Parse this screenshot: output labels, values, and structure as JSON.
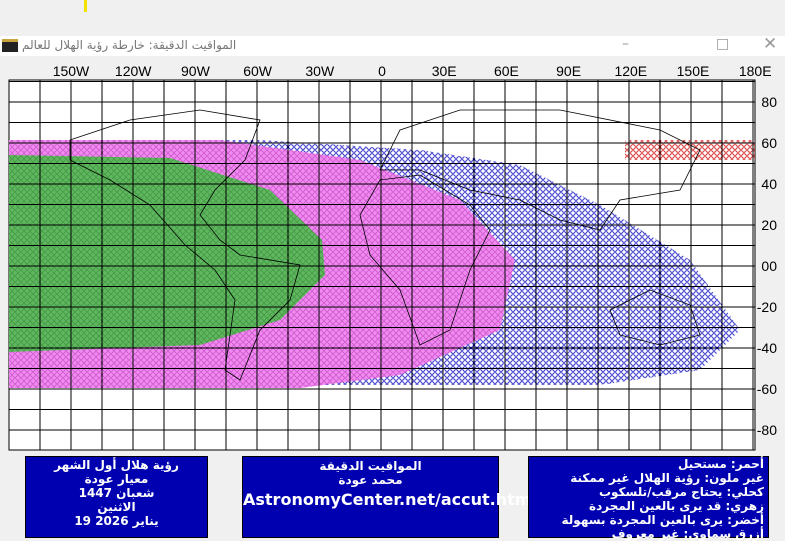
{
  "window": {
    "title": "المواقيت الدقيقة: خارطة رؤية الهلال للعالم"
  },
  "map": {
    "lon_labels": [
      "150W",
      "120W",
      "90W",
      "60W",
      "30W",
      "0",
      "30E",
      "60E",
      "90E",
      "120E",
      "150E",
      "180E"
    ],
    "lat_labels": [
      "80",
      "60",
      "40",
      "20",
      "00",
      "-20",
      "-40",
      "-60",
      "-80"
    ]
  },
  "info_box": {
    "lines": [
      "رؤية هلال أول الشهر",
      "معيار عودة",
      "شعبان 1447",
      "الاثنين",
      "19 يناير 2026"
    ]
  },
  "credit_box": {
    "lines": [
      "المواقيت الدقيقة",
      "محمد عودة"
    ],
    "url": "AstronomyCenter.net/accut.html"
  },
  "legend_box": {
    "lines": [
      "أحمر: مستحيل",
      "غير ملون: رؤية الهلال غير ممكنة",
      "كحلي: يحتاج مرقب/تلسكوب",
      "زهري: قد يرى بالعين المجردة",
      "أخضر: يرى بالعين المجردة بسهولة",
      "أزرق سماوي: غير معروف"
    ]
  }
}
